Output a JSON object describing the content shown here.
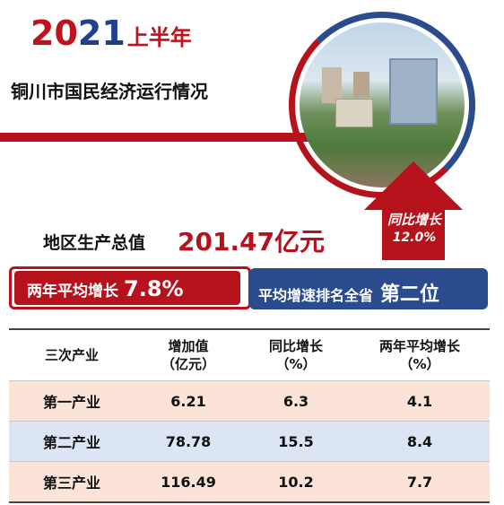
{
  "header": {
    "year_prefix": "20",
    "year_suffix": "21",
    "half_year": "上半年",
    "subtitle": "铜川市国民经济运行情况"
  },
  "growth_arrow": {
    "label": "同比增长",
    "value": "12.0%"
  },
  "gdp": {
    "label": "地区生产总值",
    "value": "201.47亿元"
  },
  "avg_growth": {
    "label": "两年平均增长",
    "value": "7.8%"
  },
  "ranking": {
    "label": "平均增速排名全省",
    "value": "第二位"
  },
  "table": {
    "headers": [
      {
        "line1": "三次产业",
        "line2": ""
      },
      {
        "line1": "增加值",
        "line2": "（亿元）"
      },
      {
        "line1": "同比增长",
        "line2": "（%）"
      },
      {
        "line1": "两年平均增长",
        "line2": "（%）"
      }
    ],
    "rows": [
      {
        "industry": "第一产业",
        "value": "6.21",
        "yoy": "6.3",
        "two_year": "4.1"
      },
      {
        "industry": "第二产业",
        "value": "78.78",
        "yoy": "15.5",
        "two_year": "8.4"
      },
      {
        "industry": "第三产业",
        "value": "116.49",
        "yoy": "10.2",
        "two_year": "7.7"
      }
    ]
  },
  "colors": {
    "red": "#b5121b",
    "blue": "#2a4b8d",
    "row_pink": "#fbe3d7",
    "row_blue": "#dbe5f4"
  }
}
